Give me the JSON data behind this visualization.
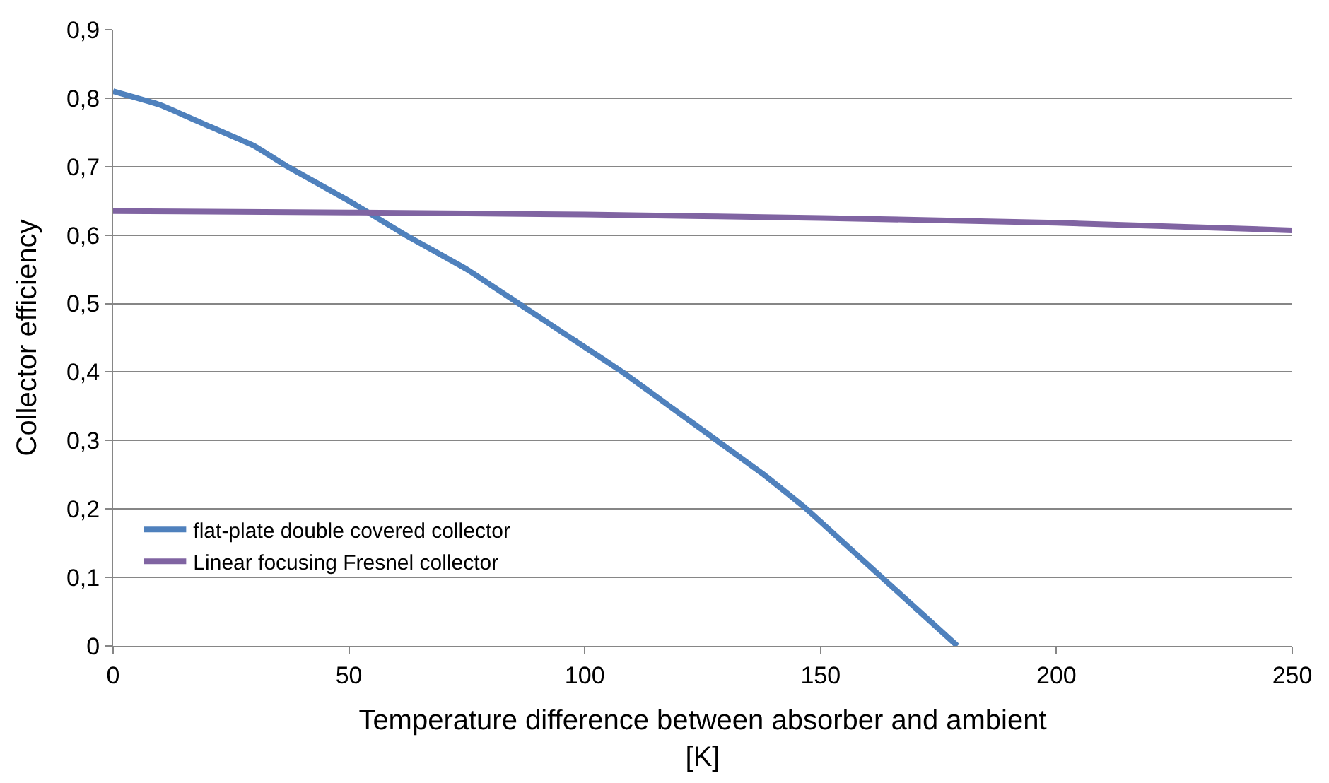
{
  "chart_data": {
    "type": "line",
    "xlabel": "Temperature difference between absorber and ambient [K]",
    "ylabel": "Collector efficiency",
    "series": [
      {
        "name": "flat-plate double covered collector",
        "color": "#4f81bd",
        "x": [
          0,
          10,
          20,
          30,
          37,
          50,
          62,
          75,
          86,
          97,
          108,
          118,
          128,
          138,
          147,
          155,
          163,
          171,
          179
        ],
        "values": [
          0.81,
          0.79,
          0.76,
          0.73,
          0.7,
          0.65,
          0.6,
          0.55,
          0.5,
          0.45,
          0.4,
          0.35,
          0.3,
          0.25,
          0.2,
          0.15,
          0.1,
          0.05,
          0.0
        ]
      },
      {
        "name": "Linear focusing Fresnel collector",
        "color": "#8064a2",
        "x": [
          0,
          50,
          100,
          150,
          200,
          250
        ],
        "values": [
          0.635,
          0.633,
          0.63,
          0.625,
          0.618,
          0.607
        ]
      }
    ],
    "xlim": [
      0,
      250
    ],
    "xticks": [
      0,
      50,
      100,
      150,
      200,
      250
    ],
    "ylim": [
      0,
      0.9
    ],
    "yticks": [
      {
        "value": 0,
        "label": "0"
      },
      {
        "value": 0.1,
        "label": "0,1"
      },
      {
        "value": 0.2,
        "label": "0,2"
      },
      {
        "value": 0.3,
        "label": "0,3"
      },
      {
        "value": 0.4,
        "label": "0,4"
      },
      {
        "value": 0.5,
        "label": "0,5"
      },
      {
        "value": 0.6,
        "label": "0,6"
      },
      {
        "value": 0.7,
        "label": "0,7"
      },
      {
        "value": 0.8,
        "label": "0,8"
      },
      {
        "value": 0.9,
        "label": "0,9"
      }
    ],
    "grid": "y",
    "legend": "bottom left",
    "marker": "none",
    "line_style": "solid"
  }
}
